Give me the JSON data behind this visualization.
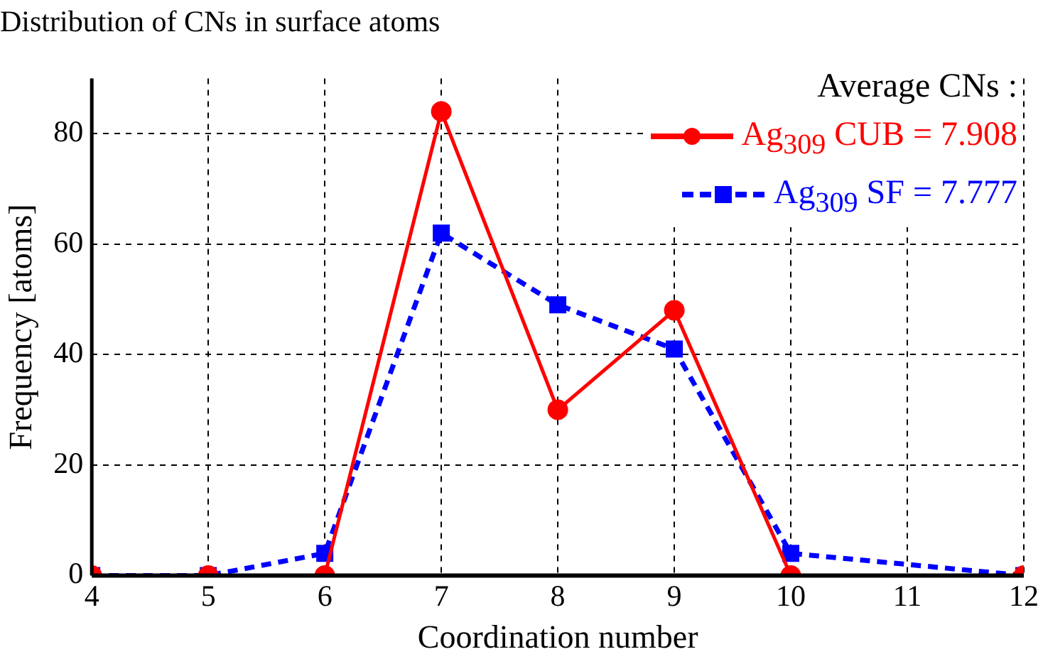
{
  "chart_data": {
    "type": "line",
    "title": "Distribution of CNs in surface atoms",
    "xlabel": "Coordination number",
    "ylabel": "Frequency [atoms]",
    "legend_title": "Average CNs :",
    "series": [
      {
        "name": "Ag$_{309}$ CUB = 7.908",
        "color": "#ff0000",
        "marker": "circle",
        "line_style": "solid",
        "x": [
          4,
          5,
          6,
          7,
          8,
          9,
          10,
          12
        ],
        "values": [
          0,
          0,
          0,
          84,
          30,
          48,
          0,
          0
        ]
      },
      {
        "name": "Ag$_{309}$ SF = 7.777",
        "color": "#0000ff",
        "marker": "square",
        "line_style": "dashed",
        "x": [
          4,
          5,
          6,
          7,
          8,
          9,
          10,
          12
        ],
        "values": [
          0,
          0,
          4,
          62,
          49,
          41,
          4,
          0
        ]
      }
    ],
    "xlim": [
      4,
      12
    ],
    "xticks": [
      4,
      5,
      6,
      7,
      8,
      9,
      10,
      11,
      12
    ],
    "ylim": [
      0,
      90
    ],
    "yticks": [
      0,
      20,
      40,
      60,
      80
    ],
    "grid": true,
    "legend": "top right"
  }
}
